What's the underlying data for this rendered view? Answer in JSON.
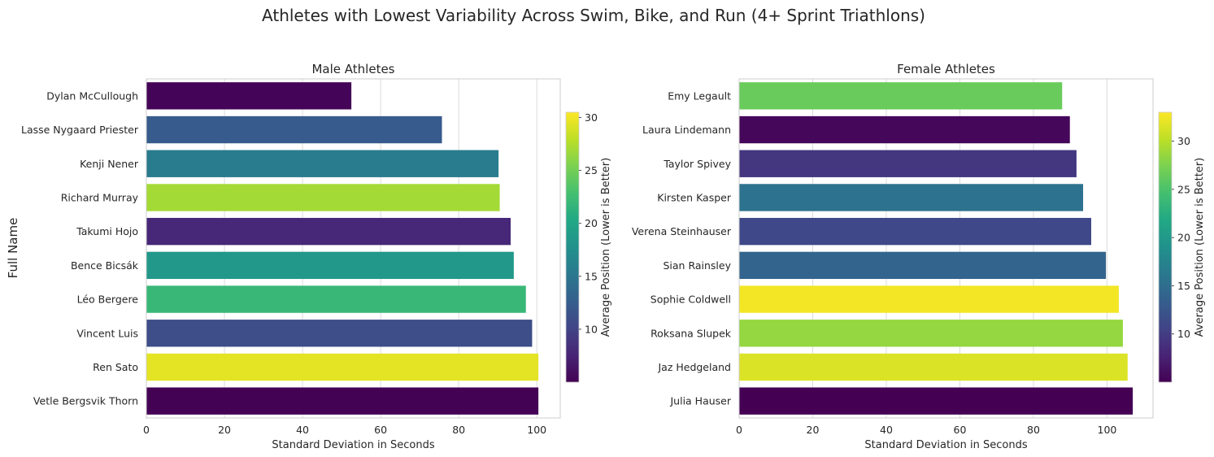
{
  "chart_data": {
    "suptitle": "Athletes with Lowest Variability Across Swim, Bike, and Run (4+ Sprint Triathlons)",
    "ylabel": "Full Name",
    "panels": [
      {
        "type": "bar",
        "orientation": "horizontal",
        "title": "Male Athletes",
        "xlabel": "Standard Deviation in Seconds",
        "xlim": [
          0,
          106
        ],
        "xticks": [
          0,
          20,
          40,
          60,
          80,
          100
        ],
        "categories": [
          "Dylan McCullough",
          "Lasse Nygaard Priester",
          "Kenji Nener",
          "Richard Murray",
          "Takumi Hojo",
          "Bence Bicsák",
          "Léo Bergere",
          "Vincent Luis",
          "Ren Sato",
          "Vetle Bergsvik Thorn"
        ],
        "values": [
          52.5,
          75.7,
          90.2,
          90.5,
          93.3,
          94.1,
          97.2,
          98.8,
          100.4,
          100.4
        ],
        "avg_position": [
          5.2,
          12.3,
          15.5,
          27,
          7.8,
          18.5,
          22,
          11,
          29.5,
          5.1
        ],
        "colorbar": {
          "label": "Average Position (Lower is Better)",
          "min": 5,
          "max": 30.5,
          "ticks": [
            10,
            15,
            20,
            25,
            30
          ]
        }
      },
      {
        "type": "bar",
        "orientation": "horizontal",
        "title": "Female Athletes",
        "xlabel": "Standard Deviation in Seconds",
        "xlim": [
          0,
          112.5
        ],
        "xticks": [
          0,
          20,
          40,
          60,
          80,
          100
        ],
        "categories": [
          "Emy Legault",
          "Laura Lindemann",
          "Taylor Spivey",
          "Kirsten Kasper",
          "Verena Steinhauser",
          "Sian Rainsley",
          "Sophie Coldwell",
          "Roksana Slupek",
          "Jaz Hedgeland",
          "Julia Hauser"
        ],
        "values": [
          87.8,
          89.9,
          91.7,
          93.5,
          95.7,
          99.7,
          103.2,
          104.3,
          105.6,
          107.0
        ],
        "avg_position": [
          26.5,
          5.5,
          9.5,
          15.5,
          11,
          14,
          32.5,
          28.5,
          31.5,
          5
        ],
        "colorbar": {
          "label": "Average Position (Lower is Better)",
          "min": 5,
          "max": 33,
          "ticks": [
            10,
            15,
            20,
            25,
            30
          ]
        }
      }
    ]
  }
}
